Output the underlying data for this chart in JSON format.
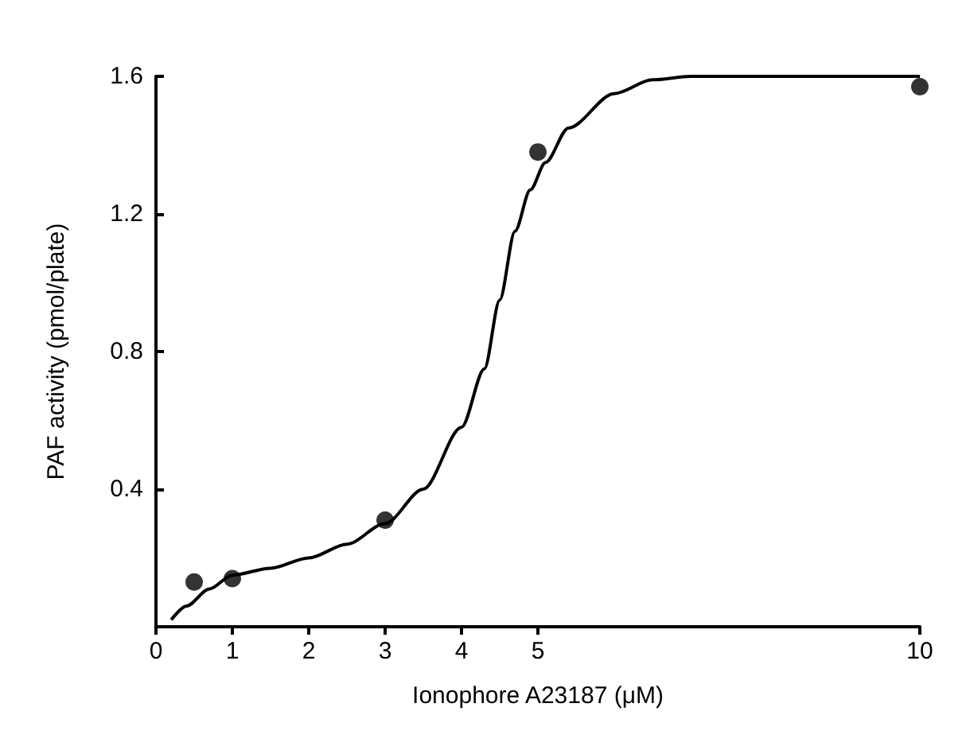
{
  "chart_data": {
    "type": "scatter",
    "xlabel": "Ionophore A23187 (μM)",
    "ylabel": "PAF activity (pmol/plate)",
    "x": [
      0.5,
      1,
      3,
      5,
      10
    ],
    "series": [
      {
        "color": "#000000",
        "marker": "circle",
        "values": [
          0.13,
          0.14,
          0.31,
          1.38,
          1.57
        ]
      },
      {
        "type": "line",
        "color": "#000000",
        "marker": "none",
        "line_style": "solid",
        "x": [
          0.2,
          0.4,
          0.7,
          1,
          1.5,
          2,
          2.5,
          3,
          3.5,
          4,
          4.3,
          4.5,
          4.7,
          4.9,
          5.1,
          5.4,
          6,
          6.5,
          7,
          10
        ],
        "values": [
          0.02,
          0.06,
          0.11,
          0.15,
          0.17,
          0.2,
          0.24,
          0.3,
          0.4,
          0.58,
          0.75,
          0.95,
          1.15,
          1.27,
          1.35,
          1.45,
          1.55,
          1.59,
          1.6,
          1.6
        ]
      }
    ],
    "xlim": [
      0,
      10
    ],
    "xticks": [
      0,
      1,
      2,
      3,
      4,
      5,
      10
    ],
    "ylim": [
      0,
      1.6
    ],
    "yticks": [
      0.4,
      0.8,
      1.2,
      1.6
    ],
    "grid": false
  }
}
